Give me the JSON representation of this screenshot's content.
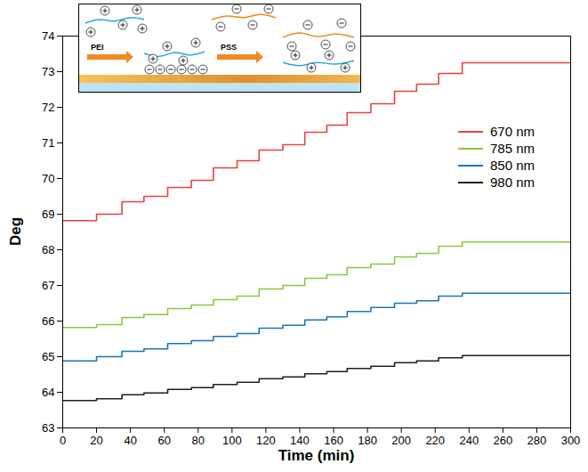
{
  "chart_data": {
    "type": "line",
    "x_label": "Time (min)",
    "y_label": "Deg",
    "annotations": [
      "PEI",
      "PSS"
    ],
    "x": [
      0,
      20,
      35,
      48,
      62,
      76,
      89,
      103,
      116,
      130,
      143,
      156,
      168,
      182,
      196,
      209,
      222,
      236,
      300
    ],
    "series": [
      {
        "name": "670 nm",
        "color": "#e8423f",
        "values": [
          68.82,
          69.0,
          69.35,
          69.5,
          69.75,
          69.95,
          70.3,
          70.5,
          70.8,
          70.95,
          71.3,
          71.5,
          71.85,
          72.1,
          72.45,
          72.65,
          72.95,
          73.25,
          73.25
        ]
      },
      {
        "name": "785 nm",
        "color": "#8dc63f",
        "values": [
          65.82,
          65.9,
          66.1,
          66.18,
          66.35,
          66.45,
          66.6,
          66.7,
          66.9,
          67.0,
          67.2,
          67.3,
          67.5,
          67.6,
          67.8,
          67.9,
          68.1,
          68.22,
          68.22
        ]
      },
      {
        "name": "850 nm",
        "color": "#1c75bc",
        "values": [
          64.88,
          65.0,
          65.15,
          65.22,
          65.37,
          65.45,
          65.57,
          65.65,
          65.8,
          65.88,
          66.03,
          66.12,
          66.27,
          66.38,
          66.5,
          66.57,
          66.7,
          66.78,
          66.78
        ]
      },
      {
        "name": "980 nm",
        "color": "#231f20",
        "values": [
          63.77,
          63.82,
          63.93,
          63.98,
          64.08,
          64.13,
          64.22,
          64.28,
          64.38,
          64.43,
          64.52,
          64.58,
          64.67,
          64.73,
          64.83,
          64.88,
          64.97,
          65.03,
          65.03
        ]
      }
    ],
    "xlim": [
      0,
      300
    ],
    "xticks": [
      0,
      20,
      40,
      60,
      80,
      100,
      120,
      140,
      160,
      180,
      200,
      220,
      240,
      260,
      280,
      300
    ],
    "ylim": [
      63,
      74
    ],
    "yticks": [
      63,
      64,
      65,
      66,
      67,
      68,
      69,
      70,
      71,
      72,
      73,
      74
    ],
    "grid": false,
    "legend": "top-right",
    "line_style": "step"
  }
}
